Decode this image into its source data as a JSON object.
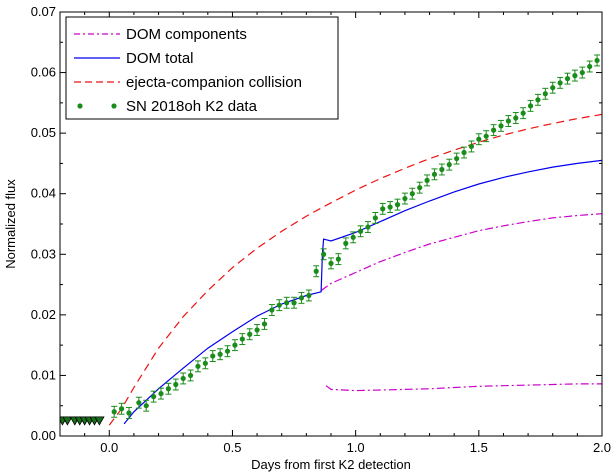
{
  "chart_data": {
    "type": "scatter",
    "title": "",
    "xlabel": "Days from first K2 detection",
    "ylabel": "Normalized flux",
    "xlim": [
      -0.2,
      2.0
    ],
    "ylim": [
      0.0,
      0.07
    ],
    "x_ticks": [
      0.0,
      0.5,
      1.0,
      1.5,
      2.0
    ],
    "x_tick_labels": [
      "0.0",
      "0.5",
      "1.0",
      "1.5",
      "2.0"
    ],
    "y_ticks": [
      0.0,
      0.01,
      0.02,
      0.03,
      0.04,
      0.05,
      0.06,
      0.07
    ],
    "y_tick_labels": [
      "0.00",
      "0.01",
      "0.02",
      "0.03",
      "0.04",
      "0.05",
      "0.06",
      "0.07"
    ],
    "grid": false,
    "legend_position": "top-left",
    "colors": {
      "dom_components": "#cc00cc",
      "dom_total": "#0000ee",
      "collision": "#ee1111",
      "k2_data": "#1a8c1a",
      "upper_limits": "#1a6e1a"
    },
    "series": [
      {
        "name": "DOM components",
        "style": "dash-dot",
        "segments": [
          {
            "x": [
              0.88,
              0.9,
              1.0,
              1.1,
              1.2,
              1.3,
              1.4,
              1.5,
              1.6,
              1.7,
              1.8,
              1.9,
              2.0
            ],
            "y": [
              0.0083,
              0.0077,
              0.0075,
              0.0076,
              0.0077,
              0.0078,
              0.008,
              0.0082,
              0.0083,
              0.0084,
              0.0085,
              0.0086,
              0.0086
            ]
          },
          {
            "x": [
              0.86,
              0.9,
              1.0,
              1.1,
              1.2,
              1.3,
              1.4,
              1.5,
              1.6,
              1.7,
              1.8,
              1.9,
              2.0
            ],
            "y": [
              0.024,
              0.0252,
              0.027,
              0.0288,
              0.0303,
              0.0317,
              0.0328,
              0.0339,
              0.0347,
              0.0354,
              0.036,
              0.0364,
              0.0367
            ]
          }
        ]
      },
      {
        "name": "DOM total",
        "style": "solid",
        "segments": [
          {
            "x": [
              0.06,
              0.1,
              0.2,
              0.3,
              0.4,
              0.5,
              0.6,
              0.7,
              0.8,
              0.86,
              0.865,
              0.87,
              0.9,
              1.0,
              1.1,
              1.2,
              1.3,
              1.4,
              1.5,
              1.6,
              1.7,
              1.8,
              1.9,
              2.0
            ],
            "y": [
              0.002,
              0.004,
              0.0078,
              0.0112,
              0.0145,
              0.0172,
              0.0198,
              0.0218,
              0.0232,
              0.0238,
              0.03,
              0.0325,
              0.0322,
              0.0336,
              0.0354,
              0.0372,
              0.0388,
              0.0403,
              0.0416,
              0.0427,
              0.0436,
              0.0444,
              0.045,
              0.0455
            ]
          }
        ]
      },
      {
        "name": "ejecta-companion collision",
        "style": "dashed",
        "segments": [
          {
            "x": [
              0.0,
              0.05,
              0.1,
              0.2,
              0.3,
              0.4,
              0.5,
              0.6,
              0.7,
              0.8,
              0.9,
              1.0,
              1.1,
              1.2,
              1.3,
              1.4,
              1.5,
              1.6,
              1.7,
              1.8,
              1.9,
              2.0
            ],
            "y": [
              0.0018,
              0.0045,
              0.008,
              0.0145,
              0.0197,
              0.024,
              0.0278,
              0.031,
              0.0338,
              0.0363,
              0.0385,
              0.0406,
              0.0425,
              0.0442,
              0.0458,
              0.0472,
              0.0485,
              0.0497,
              0.0507,
              0.0516,
              0.0524,
              0.0531
            ]
          }
        ]
      },
      {
        "name": "SN 2018oh K2 data",
        "style": "points-errorbars",
        "x": [
          0.02,
          0.05,
          0.08,
          0.12,
          0.15,
          0.18,
          0.21,
          0.24,
          0.27,
          0.3,
          0.33,
          0.36,
          0.39,
          0.42,
          0.45,
          0.48,
          0.51,
          0.54,
          0.57,
          0.6,
          0.63,
          0.66,
          0.69,
          0.72,
          0.75,
          0.78,
          0.81,
          0.84,
          0.87,
          0.9,
          0.93,
          0.96,
          0.99,
          1.02,
          1.05,
          1.08,
          1.11,
          1.14,
          1.17,
          1.2,
          1.23,
          1.26,
          1.29,
          1.32,
          1.35,
          1.38,
          1.41,
          1.44,
          1.47,
          1.5,
          1.53,
          1.56,
          1.59,
          1.62,
          1.65,
          1.68,
          1.71,
          1.74,
          1.77,
          1.8,
          1.83,
          1.86,
          1.89,
          1.92,
          1.95,
          1.98
        ],
        "y": [
          0.004,
          0.0045,
          0.0038,
          0.0055,
          0.005,
          0.0065,
          0.007,
          0.0078,
          0.0085,
          0.0095,
          0.01,
          0.0115,
          0.012,
          0.0132,
          0.0135,
          0.014,
          0.015,
          0.016,
          0.0168,
          0.0175,
          0.0185,
          0.0208,
          0.0216,
          0.022,
          0.022,
          0.0228,
          0.0232,
          0.0272,
          0.03,
          0.0285,
          0.0292,
          0.0318,
          0.0328,
          0.0338,
          0.0345,
          0.036,
          0.0375,
          0.0378,
          0.0382,
          0.0392,
          0.04,
          0.041,
          0.0422,
          0.0432,
          0.044,
          0.0448,
          0.0458,
          0.0468,
          0.0478,
          0.049,
          0.0495,
          0.0505,
          0.0512,
          0.052,
          0.0525,
          0.0533,
          0.0545,
          0.0555,
          0.0565,
          0.0575,
          0.0583,
          0.059,
          0.0595,
          0.06,
          0.061,
          0.062
        ],
        "yerr": 0.0009
      },
      {
        "name": "",
        "style": "downward-triangles",
        "x": [
          -0.19,
          -0.17,
          -0.14,
          -0.12,
          -0.1,
          -0.08,
          -0.06,
          -0.04
        ],
        "y": [
          0.0025,
          0.0025,
          0.0025,
          0.0025,
          0.0025,
          0.0025,
          0.0025,
          0.0025
        ]
      }
    ]
  }
}
